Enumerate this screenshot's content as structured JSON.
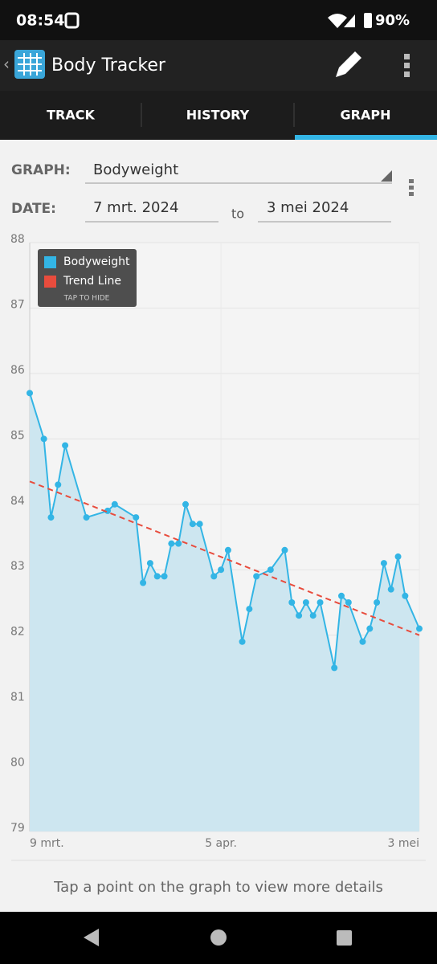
{
  "status_bar": {
    "time": "08:54",
    "battery": "90%"
  },
  "app_bar": {
    "title": "Body Tracker"
  },
  "tabs": [
    "TRACK",
    "HISTORY",
    "GRAPH"
  ],
  "form": {
    "graph_label": "GRAPH:",
    "graph_value": "Bodyweight",
    "date_label": "DATE:",
    "date_from": "7 mrt. 2024",
    "date_sep": "to",
    "date_to": "3 mei 2024"
  },
  "footer": "Tap a point on the graph to view more details",
  "chart_data": {
    "type": "line",
    "legend_note": "TAP TO HIDE",
    "legend": "top-left",
    "grid": true,
    "xlim": [
      "2024-03-09",
      "2024-05-03"
    ],
    "xticks": [
      {
        "value": "2024-03-09",
        "label": "9 mrt."
      },
      {
        "value": "2024-04-05",
        "label": "5 apr."
      },
      {
        "value": "2024-05-03",
        "label": "3 mei"
      }
    ],
    "ylim": [
      79,
      88
    ],
    "yticks": [
      79,
      80,
      81,
      82,
      83,
      84,
      85,
      86,
      87,
      88
    ],
    "series": [
      {
        "name": "Bodyweight",
        "color": "#33b5e5",
        "area_color": "#cde6f0",
        "x": [
          "2024-03-09",
          "2024-03-11",
          "2024-03-12",
          "2024-03-13",
          "2024-03-14",
          "2024-03-17",
          "2024-03-20",
          "2024-03-21",
          "2024-03-24",
          "2024-03-25",
          "2024-03-26",
          "2024-03-27",
          "2024-03-28",
          "2024-03-29",
          "2024-03-30",
          "2024-03-31",
          "2024-04-01",
          "2024-04-02",
          "2024-04-04",
          "2024-04-05",
          "2024-04-06",
          "2024-04-08",
          "2024-04-09",
          "2024-04-10",
          "2024-04-12",
          "2024-04-14",
          "2024-04-15",
          "2024-04-16",
          "2024-04-17",
          "2024-04-18",
          "2024-04-19",
          "2024-04-21",
          "2024-04-22",
          "2024-04-23",
          "2024-04-25",
          "2024-04-26",
          "2024-04-27",
          "2024-04-28",
          "2024-04-29",
          "2024-04-30",
          "2024-05-01",
          "2024-05-03"
        ],
        "values": [
          85.7,
          85.0,
          83.8,
          84.3,
          84.9,
          83.8,
          83.9,
          84.0,
          83.8,
          82.8,
          83.1,
          82.9,
          82.9,
          83.4,
          83.4,
          84.0,
          83.7,
          83.7,
          82.9,
          83.0,
          83.3,
          81.9,
          82.4,
          82.9,
          83.0,
          83.3,
          82.5,
          82.3,
          82.5,
          82.3,
          82.5,
          81.5,
          82.6,
          82.5,
          81.9,
          82.1,
          82.5,
          83.1,
          82.7,
          83.2,
          82.6,
          82.1
        ]
      },
      {
        "name": "Trend Line",
        "color": "#e84c3d",
        "dashed": true,
        "x": [
          "2024-03-09",
          "2024-05-03"
        ],
        "values": [
          84.35,
          82.0
        ]
      }
    ]
  }
}
